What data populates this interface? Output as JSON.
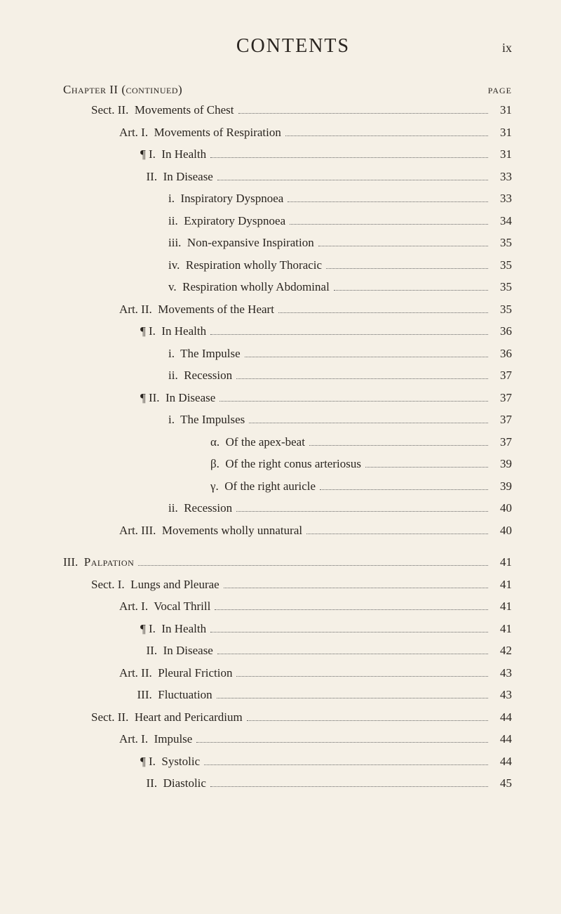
{
  "header": {
    "title": "CONTENTS",
    "roman": "ix"
  },
  "page_label": "PAGE",
  "chapter_heading": "Chapter II (continued)",
  "entries": [
    {
      "indent": 1,
      "label": "Sect. II.  Movements of Chest",
      "page": "31"
    },
    {
      "indent": 2,
      "label": "Art. I.  Movements of Respiration",
      "page": "31"
    },
    {
      "indent": 3,
      "label": "¶ I.  In Health",
      "page": "31"
    },
    {
      "indent": 3,
      "label": "  II.  In Disease",
      "page": "33"
    },
    {
      "indent": 4,
      "label": "i.  Inspiratory Dyspnoea",
      "page": "33"
    },
    {
      "indent": 4,
      "label": "ii.  Expiratory Dyspnoea",
      "page": "34"
    },
    {
      "indent": 4,
      "label": "iii.  Non-expansive Inspiration",
      "page": "35"
    },
    {
      "indent": 4,
      "label": "iv.  Respiration wholly Thoracic",
      "page": "35"
    },
    {
      "indent": 4,
      "label": "v.  Respiration wholly Abdominal",
      "page": "35"
    },
    {
      "indent": 2,
      "label": "Art. II.  Movements of the Heart",
      "page": "35"
    },
    {
      "indent": 3,
      "label": "¶ I.  In Health",
      "page": "36"
    },
    {
      "indent": 4,
      "label": "i.  The Impulse",
      "page": "36"
    },
    {
      "indent": 4,
      "label": "ii.  Recession",
      "page": "37"
    },
    {
      "indent": 3,
      "label": "¶ II.  In Disease",
      "page": "37"
    },
    {
      "indent": 4,
      "label": "i.  The Impulses",
      "page": "37"
    },
    {
      "indent": 6,
      "label": "α.  Of the apex-beat",
      "page": "37"
    },
    {
      "indent": 6,
      "label": "β.  Of the right conus arteriosus",
      "page": "39"
    },
    {
      "indent": 6,
      "label": "γ.  Of the right auricle",
      "page": "39"
    },
    {
      "indent": 4,
      "label": "ii.  Recession",
      "page": "40"
    },
    {
      "indent": 2,
      "label": "Art. III.  Movements wholly unnatural",
      "page": "40"
    }
  ],
  "section3_heading": {
    "indent": 0,
    "label": "III.  Palpation",
    "page": "41"
  },
  "section3_entries": [
    {
      "indent": 1,
      "label": "Sect. I.  Lungs and Pleurae",
      "page": "41"
    },
    {
      "indent": 2,
      "label": "Art. I.  Vocal Thrill",
      "page": "41"
    },
    {
      "indent": 3,
      "label": "¶ I.  In Health",
      "page": "41"
    },
    {
      "indent": 3,
      "label": "  II.  In Disease",
      "page": "42"
    },
    {
      "indent": 2,
      "label": "Art. II.  Pleural Friction",
      "page": "43"
    },
    {
      "indent": 2,
      "label": "      III.  Fluctuation",
      "page": "43"
    },
    {
      "indent": 1,
      "label": "Sect. II.  Heart and Pericardium",
      "page": "44"
    },
    {
      "indent": 2,
      "label": "Art. I.  Impulse",
      "page": "44"
    },
    {
      "indent": 3,
      "label": "¶ I.  Systolic",
      "page": "44"
    },
    {
      "indent": 3,
      "label": "  II.  Diastolic",
      "page": "45"
    }
  ]
}
